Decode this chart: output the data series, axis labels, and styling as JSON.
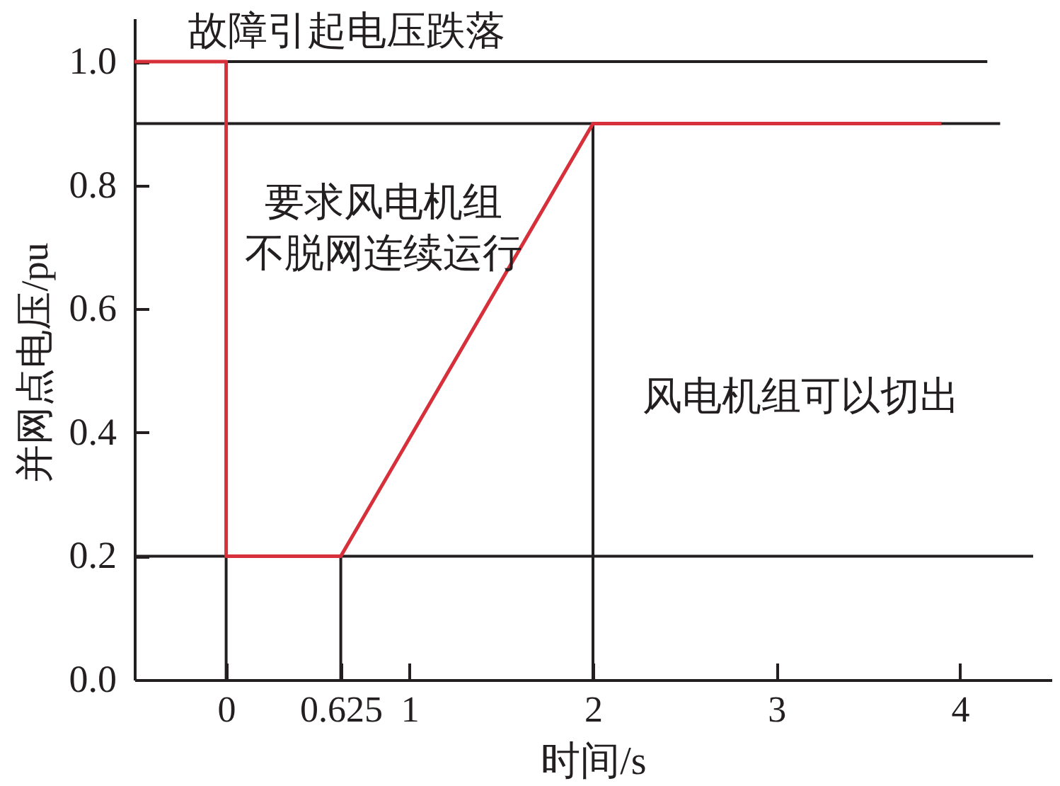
{
  "chart_data": {
    "type": "line",
    "xlabel": "时间/s",
    "ylabel": "并网点电压/pu",
    "xlim": [
      -0.5,
      4.5
    ],
    "xticks": [
      0,
      0.625,
      1,
      2,
      3,
      4
    ],
    "ylim": [
      0,
      1.07
    ],
    "yticks": [
      {
        "value": 0,
        "label": "0.0"
      },
      0.2,
      0.4,
      0.6,
      0.8,
      {
        "value": 1,
        "label": "1.0"
      }
    ],
    "series": [
      {
        "color": "#231f20",
        "x": [
          0,
          4.15
        ],
        "values": [
          1,
          1
        ]
      },
      {
        "color": "#231f20",
        "x": [
          -0.5,
          4.22
        ],
        "values": [
          0.9,
          0.9
        ]
      },
      {
        "color": "#231f20",
        "x": [
          -0.5,
          4.4
        ],
        "values": [
          0.2,
          0.2
        ]
      },
      {
        "color": "#231f20",
        "x": [
          0,
          0
        ],
        "values": [
          0,
          0.2
        ]
      },
      {
        "color": "#231f20",
        "x": [
          0.625,
          0.625
        ],
        "values": [
          0,
          0.2
        ]
      },
      {
        "color": "#231f20",
        "x": [
          2,
          2
        ],
        "values": [
          0,
          0.9
        ]
      },
      {
        "color": "#d7303a",
        "x": [
          -0.5,
          0,
          0,
          0.625,
          2,
          3.9
        ],
        "values": [
          1,
          1,
          0.2,
          0.2,
          0.9,
          0.9
        ]
      }
    ],
    "annotations": [
      "故障引起电压跌落",
      "要求风电机组不脱网连续运行",
      "风电机组可以切出"
    ]
  }
}
